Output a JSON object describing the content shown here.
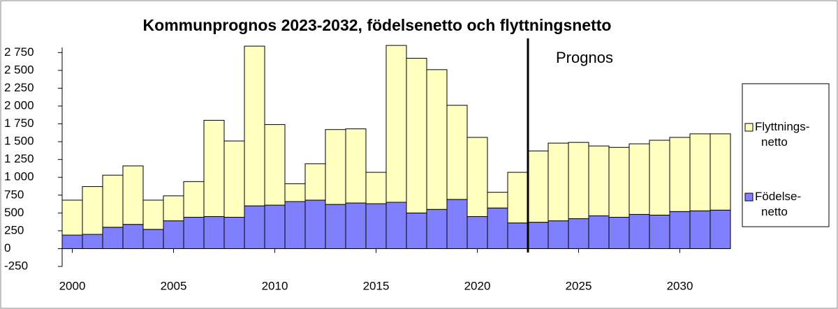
{
  "chart_data": {
    "type": "bar",
    "stacked": true,
    "title": "Kommunprognos 2023-2032, födelsenetto och flyttningsnetto",
    "x": [
      2000,
      2001,
      2002,
      2003,
      2004,
      2005,
      2006,
      2007,
      2008,
      2009,
      2010,
      2011,
      2012,
      2013,
      2014,
      2015,
      2016,
      2017,
      2018,
      2019,
      2020,
      2021,
      2022,
      2023,
      2024,
      2025,
      2026,
      2027,
      2028,
      2029,
      2030,
      2031,
      2032
    ],
    "xlim": [
      1999.5,
      2032.5
    ],
    "xticks": [
      2000,
      2005,
      2010,
      2015,
      2020,
      2025,
      2030
    ],
    "ylim": [
      -250,
      2900
    ],
    "yticks": [
      -250,
      0,
      250,
      500,
      750,
      {
        "value": 1000,
        "label": "1 000"
      },
      {
        "value": 1250,
        "label": "1 250"
      },
      {
        "value": 1500,
        "label": "1 500"
      },
      {
        "value": 1750,
        "label": "1 750"
      },
      {
        "value": 2000,
        "label": "2 000"
      },
      {
        "value": 2250,
        "label": "2 250"
      },
      {
        "value": 2500,
        "label": "2 500"
      },
      {
        "value": 2750,
        "label": "2 750"
      }
    ],
    "grid": false,
    "legend": "right",
    "series": [
      {
        "name": "Födelse-netto",
        "color": "#8080ff",
        "values": [
          190,
          200,
          300,
          340,
          270,
          390,
          440,
          450,
          440,
          600,
          610,
          660,
          680,
          620,
          640,
          630,
          650,
          500,
          550,
          690,
          450,
          570,
          360,
          370,
          390,
          420,
          460,
          440,
          480,
          470,
          520,
          530,
          540
        ]
      },
      {
        "name": "Flyttnings-netto",
        "color": "#ffffc0",
        "values": [
          490,
          670,
          730,
          820,
          410,
          350,
          500,
          1350,
          1070,
          2240,
          1130,
          250,
          510,
          1050,
          1040,
          440,
          2200,
          2170,
          1960,
          1320,
          1110,
          220,
          710,
          1000,
          1090,
          1070,
          980,
          980,
          990,
          1050,
          1040,
          1080,
          1070
        ]
      }
    ],
    "annotations": [
      {
        "text": "Prognos",
        "x": 2022.5
      }
    ]
  }
}
